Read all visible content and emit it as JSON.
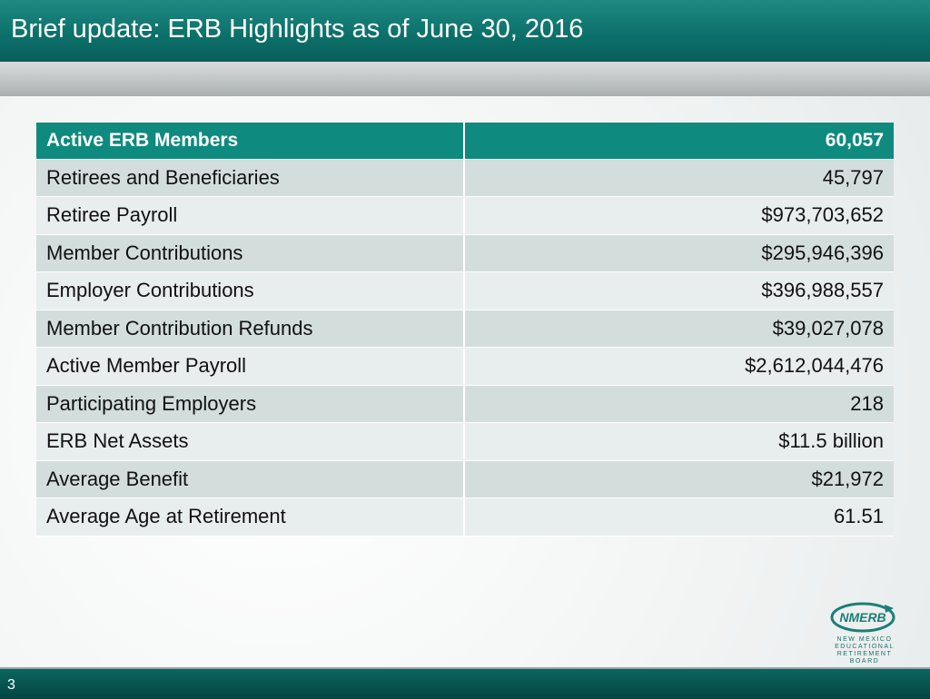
{
  "header": {
    "title": "Brief update: ERB Highlights as of June 30, 2016"
  },
  "table": {
    "header": [
      "Active ERB Members",
      "60,057"
    ],
    "rows": [
      [
        "Retirees and Beneficiaries",
        "45,797"
      ],
      [
        "Retiree Payroll",
        "$973,703,652"
      ],
      [
        "Member Contributions",
        "$295,946,396"
      ],
      [
        "Employer Contributions",
        "$396,988,557"
      ],
      [
        "Member Contribution Refunds",
        "$39,027,078"
      ],
      [
        "Active Member Payroll",
        "$2,612,044,476"
      ],
      [
        "Participating Employers",
        "218"
      ],
      [
        "ERB Net Assets",
        "$11.5 billion"
      ],
      [
        "Average Benefit",
        "$21,972"
      ],
      [
        "Average Age at Retirement",
        "61.51"
      ]
    ]
  },
  "logo": {
    "name": "NMERB",
    "lines": [
      "NEW MEXICO",
      "EDUCATIONAL",
      "RETIREMENT",
      "BOARD"
    ]
  },
  "footer": {
    "page": "3"
  }
}
